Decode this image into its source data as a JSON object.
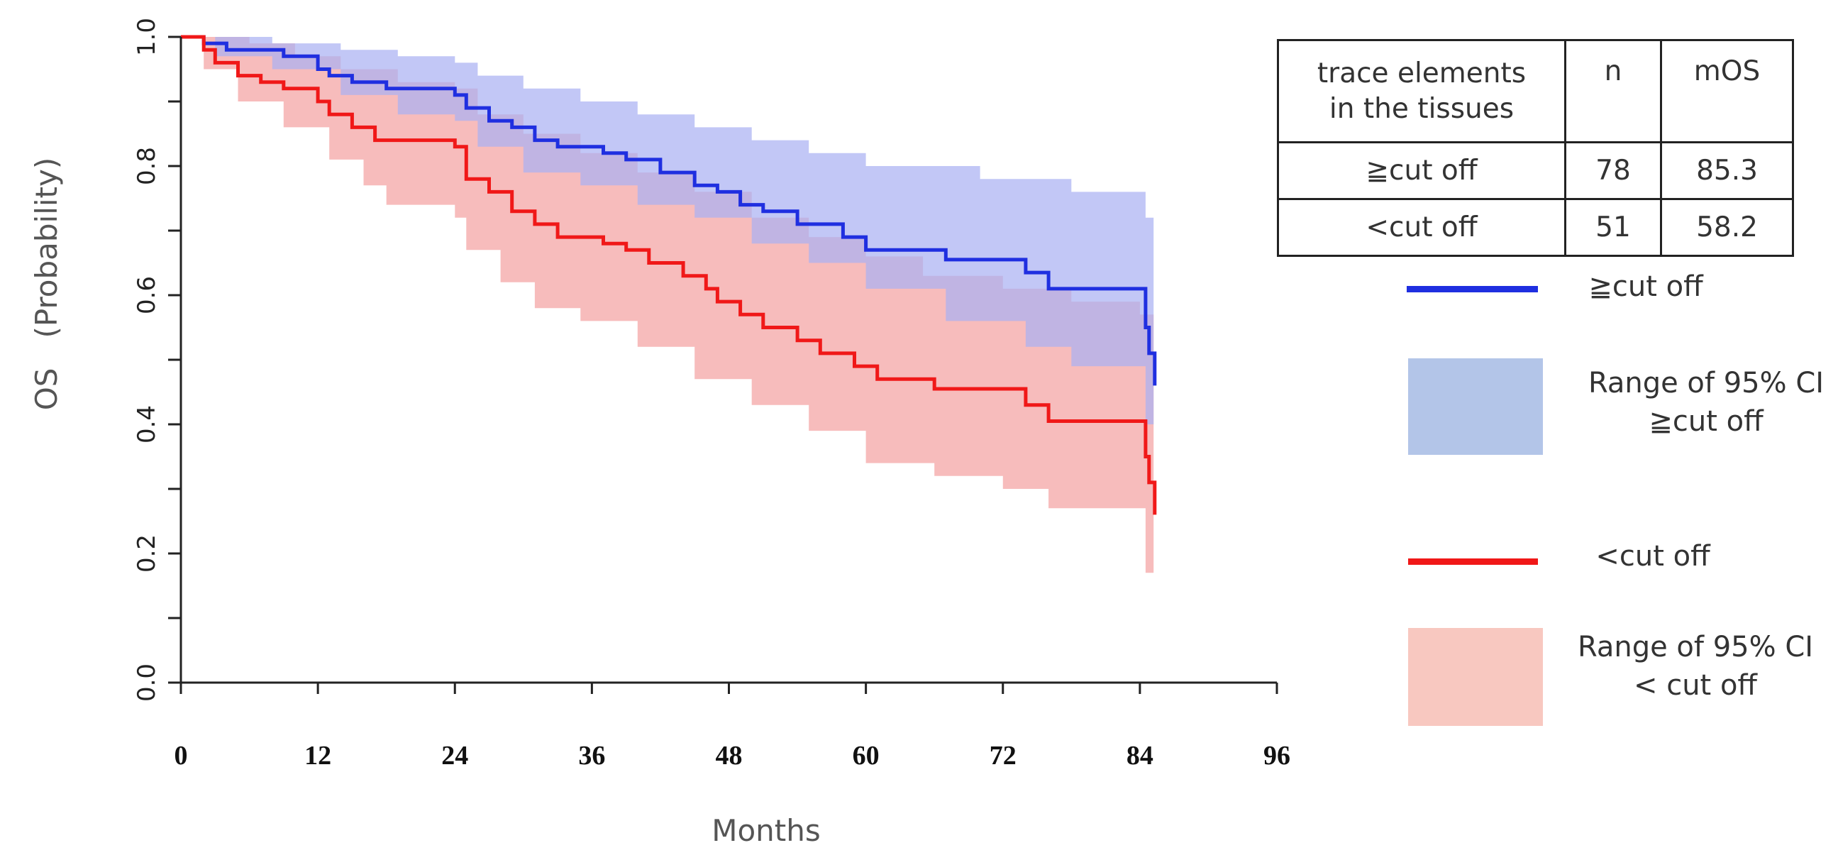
{
  "chart_data": {
    "type": "line",
    "subtype": "kaplan-meier step curves with 95% CI bands",
    "xlabel": "Months",
    "ylabel": "OS　(Probability)",
    "xlim": [
      0,
      96
    ],
    "ylim": [
      0.0,
      1.0
    ],
    "x_ticks": [
      "0",
      "12",
      "24",
      "36",
      "48",
      "60",
      "72",
      "84",
      "96"
    ],
    "y_ticks": [
      "0.0",
      "0.2",
      "0.4",
      "0.6",
      "0.8",
      "1.0"
    ],
    "series": [
      {
        "name": "≧cut off",
        "color": "#1f2fe0",
        "ci_color": "#aab2f2",
        "steps": [
          [
            0,
            1.0
          ],
          [
            2,
            0.99
          ],
          [
            4,
            0.98
          ],
          [
            9,
            0.97
          ],
          [
            12,
            0.95
          ],
          [
            13,
            0.94
          ],
          [
            15,
            0.93
          ],
          [
            18,
            0.92
          ],
          [
            24,
            0.91
          ],
          [
            25,
            0.89
          ],
          [
            27,
            0.87
          ],
          [
            29,
            0.86
          ],
          [
            31,
            0.84
          ],
          [
            33,
            0.83
          ],
          [
            37,
            0.82
          ],
          [
            39,
            0.81
          ],
          [
            42,
            0.79
          ],
          [
            45,
            0.77
          ],
          [
            47,
            0.76
          ],
          [
            49,
            0.74
          ],
          [
            51,
            0.73
          ],
          [
            54,
            0.71
          ],
          [
            58,
            0.69
          ],
          [
            60,
            0.67
          ],
          [
            67,
            0.655
          ],
          [
            74,
            0.635
          ],
          [
            76,
            0.61
          ],
          [
            84,
            0.61
          ],
          [
            84.5,
            0.55
          ],
          [
            84.8,
            0.51
          ],
          [
            85.3,
            0.46
          ]
        ],
        "ci_upper": [
          [
            0,
            1.0
          ],
          [
            3,
            1.0
          ],
          [
            8,
            0.99
          ],
          [
            14,
            0.98
          ],
          [
            19,
            0.97
          ],
          [
            24,
            0.96
          ],
          [
            26,
            0.94
          ],
          [
            30,
            0.92
          ],
          [
            35,
            0.9
          ],
          [
            40,
            0.88
          ],
          [
            45,
            0.86
          ],
          [
            50,
            0.84
          ],
          [
            55,
            0.82
          ],
          [
            60,
            0.8
          ],
          [
            70,
            0.78
          ],
          [
            78,
            0.76
          ],
          [
            84,
            0.76
          ],
          [
            84.5,
            0.72
          ],
          [
            85.2,
            0.72
          ]
        ],
        "ci_lower": [
          [
            0,
            1.0
          ],
          [
            3,
            0.97
          ],
          [
            8,
            0.95
          ],
          [
            14,
            0.91
          ],
          [
            19,
            0.88
          ],
          [
            24,
            0.87
          ],
          [
            26,
            0.83
          ],
          [
            30,
            0.79
          ],
          [
            35,
            0.77
          ],
          [
            40,
            0.74
          ],
          [
            45,
            0.72
          ],
          [
            50,
            0.68
          ],
          [
            55,
            0.65
          ],
          [
            60,
            0.61
          ],
          [
            67,
            0.56
          ],
          [
            74,
            0.52
          ],
          [
            78,
            0.49
          ],
          [
            84,
            0.49
          ],
          [
            84.5,
            0.4
          ],
          [
            85.2,
            0.36
          ]
        ]
      },
      {
        "name": "<cut off",
        "color": "#f01818",
        "ci_color": "#f6b0b0",
        "steps": [
          [
            0,
            1.0
          ],
          [
            2,
            0.98
          ],
          [
            3,
            0.96
          ],
          [
            5,
            0.94
          ],
          [
            7,
            0.93
          ],
          [
            9,
            0.92
          ],
          [
            12,
            0.9
          ],
          [
            13,
            0.88
          ],
          [
            15,
            0.86
          ],
          [
            17,
            0.84
          ],
          [
            24,
            0.83
          ],
          [
            25,
            0.78
          ],
          [
            27,
            0.76
          ],
          [
            29,
            0.73
          ],
          [
            31,
            0.71
          ],
          [
            33,
            0.69
          ],
          [
            37,
            0.68
          ],
          [
            39,
            0.67
          ],
          [
            41,
            0.65
          ],
          [
            44,
            0.63
          ],
          [
            46,
            0.61
          ],
          [
            47,
            0.59
          ],
          [
            49,
            0.57
          ],
          [
            51,
            0.55
          ],
          [
            54,
            0.53
          ],
          [
            56,
            0.51
          ],
          [
            59,
            0.49
          ],
          [
            61,
            0.47
          ],
          [
            66,
            0.455
          ],
          [
            74,
            0.43
          ],
          [
            76,
            0.405
          ],
          [
            84,
            0.405
          ],
          [
            84.5,
            0.35
          ],
          [
            84.8,
            0.31
          ],
          [
            85.3,
            0.26
          ]
        ],
        "ci_upper": [
          [
            0,
            1.0
          ],
          [
            2,
            1.0
          ],
          [
            6,
            0.99
          ],
          [
            10,
            0.97
          ],
          [
            14,
            0.95
          ],
          [
            19,
            0.93
          ],
          [
            24,
            0.92
          ],
          [
            26,
            0.88
          ],
          [
            30,
            0.85
          ],
          [
            35,
            0.82
          ],
          [
            40,
            0.79
          ],
          [
            45,
            0.76
          ],
          [
            50,
            0.72
          ],
          [
            55,
            0.69
          ],
          [
            60,
            0.66
          ],
          [
            65,
            0.63
          ],
          [
            72,
            0.61
          ],
          [
            78,
            0.59
          ],
          [
            84,
            0.57
          ],
          [
            85.2,
            0.55
          ]
        ],
        "ci_lower": [
          [
            0,
            1.0
          ],
          [
            2,
            0.95
          ],
          [
            5,
            0.9
          ],
          [
            9,
            0.86
          ],
          [
            13,
            0.81
          ],
          [
            16,
            0.77
          ],
          [
            18,
            0.74
          ],
          [
            24,
            0.72
          ],
          [
            25,
            0.67
          ],
          [
            28,
            0.62
          ],
          [
            31,
            0.58
          ],
          [
            35,
            0.56
          ],
          [
            40,
            0.52
          ],
          [
            45,
            0.47
          ],
          [
            50,
            0.43
          ],
          [
            55,
            0.39
          ],
          [
            60,
            0.34
          ],
          [
            66,
            0.32
          ],
          [
            72,
            0.3
          ],
          [
            76,
            0.27
          ],
          [
            84,
            0.27
          ],
          [
            84.5,
            0.17
          ],
          [
            85.2,
            0.17
          ]
        ]
      }
    ],
    "table": {
      "header": {
        "group": "trace elements\nin the tissues",
        "n": "n",
        "mos": "mOS"
      },
      "rows": [
        {
          "group": "≧cut off",
          "n": "78",
          "mos": "85.3"
        },
        {
          "group": "<cut off",
          "n": "51",
          "mos": "58.2"
        }
      ]
    },
    "legend": {
      "high_line": "≧cut off",
      "high_ci_line1": "Range of 95% CI",
      "high_ci_line2": "≧cut off",
      "low_line": "<cut off",
      "low_ci_line1": "Range of 95% CI",
      "low_ci_line2": "< cut off",
      "high_ci_swatch_color": "#b3c5e8",
      "low_ci_swatch_color": "#f8c8c0"
    }
  }
}
